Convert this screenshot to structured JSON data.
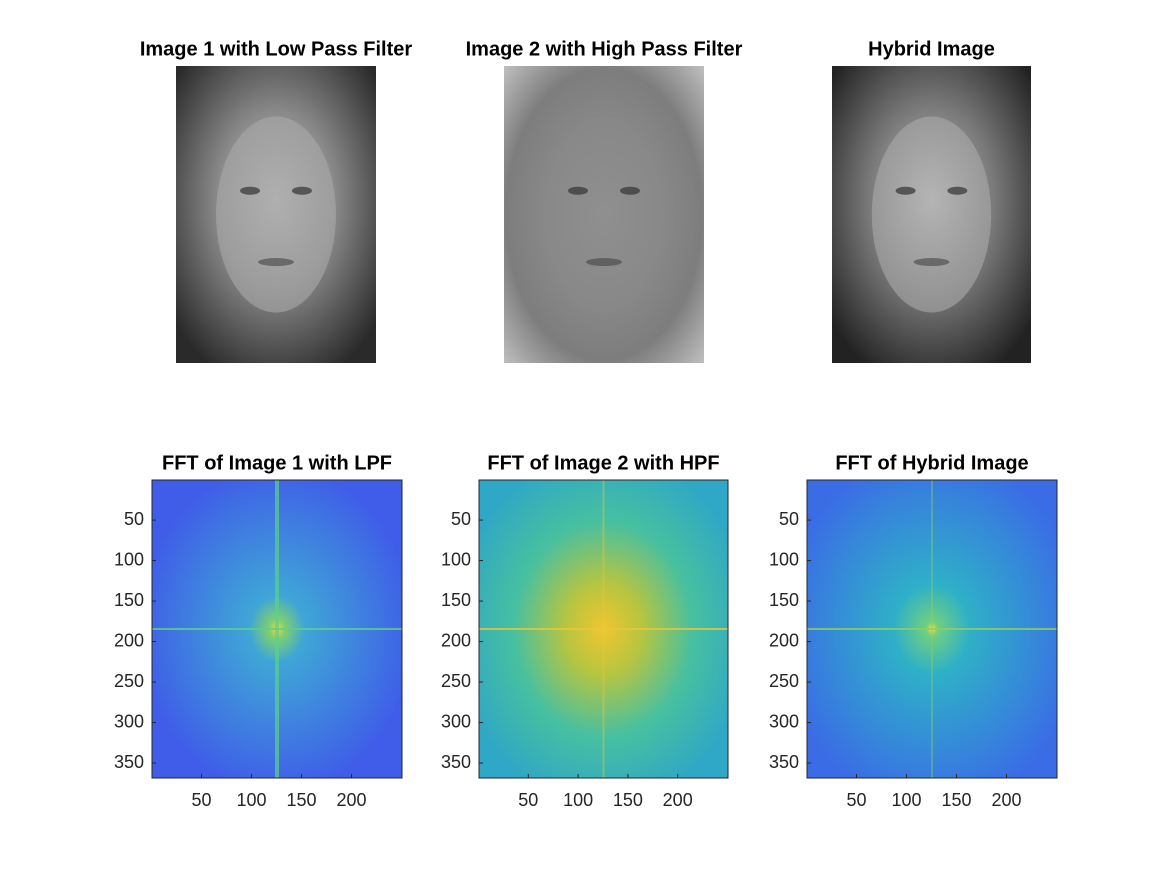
{
  "chart_data": [
    {
      "type": "image",
      "title": "Image 1 with Low Pass Filter"
    },
    {
      "type": "image",
      "title": "Image 2 with High Pass Filter"
    },
    {
      "type": "image",
      "title": "Hybrid Image"
    },
    {
      "type": "heatmap",
      "title": "FFT of Image 1 with LPF",
      "xlim": [
        0.5,
        250.5
      ],
      "ylim": [
        0.5,
        368.5
      ],
      "ydir": "reverse",
      "xticks": [
        50,
        100,
        150,
        200
      ],
      "yticks": [
        50,
        100,
        150,
        200,
        250,
        300,
        350
      ]
    },
    {
      "type": "heatmap",
      "title": "FFT of Image 2 with HPF",
      "xlim": [
        0.5,
        250.5
      ],
      "ylim": [
        0.5,
        368.5
      ],
      "ydir": "reverse",
      "xticks": [
        50,
        100,
        150,
        200
      ],
      "yticks": [
        50,
        100,
        150,
        200,
        250,
        300,
        350
      ]
    },
    {
      "type": "heatmap",
      "title": "FFT of Hybrid Image",
      "xlim": [
        0.5,
        250.5
      ],
      "ylim": [
        0.5,
        368.5
      ],
      "ydir": "reverse",
      "xticks": [
        50,
        100,
        150,
        200
      ],
      "yticks": [
        50,
        100,
        150,
        200,
        250,
        300,
        350
      ]
    }
  ]
}
